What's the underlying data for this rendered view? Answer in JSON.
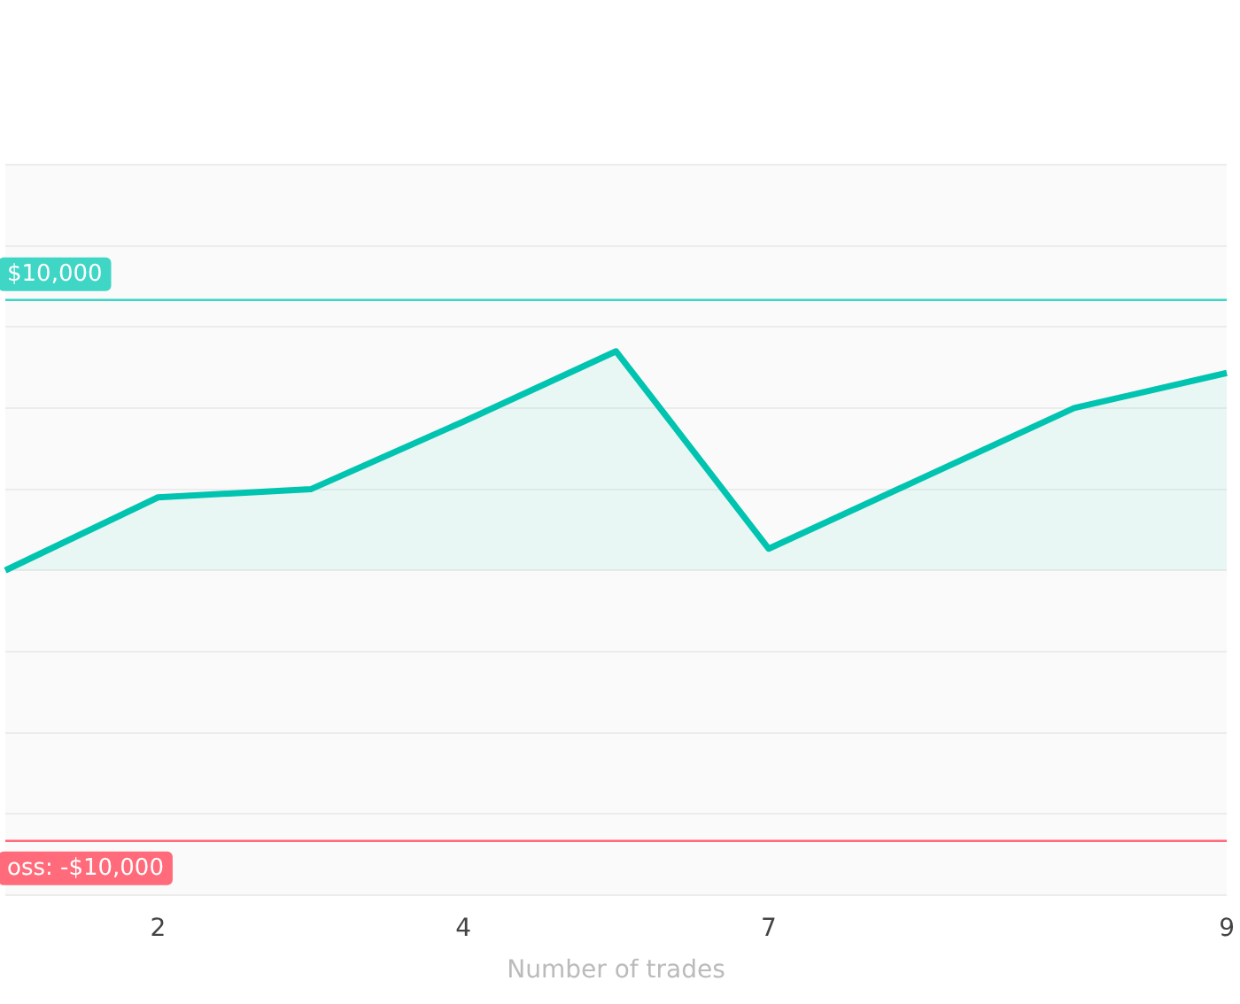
{
  "chart_data": {
    "type": "area",
    "xlabel": "Number of trades",
    "categories": [
      null,
      "2",
      null,
      "4",
      null,
      "7",
      null,
      null,
      "9"
    ],
    "series": [
      {
        "color": "#00c4b0",
        "values": [
          0,
          2700,
          3000,
          5500,
          8100,
          800,
          3400,
          6000,
          7300
        ]
      }
    ],
    "ylim": [
      -12000,
      15000
    ],
    "yticks": [
      {
        "value": -12000,
        "label": null
      },
      {
        "value": -9000,
        "label": null
      },
      {
        "value": -6000,
        "label": null
      },
      {
        "value": -3000,
        "label": null
      },
      {
        "value": 0,
        "label": null
      },
      {
        "value": 3000,
        "label": null
      },
      {
        "value": 6000,
        "label": null
      },
      {
        "value": 9000,
        "label": null
      },
      {
        "value": 12000,
        "label": null
      },
      {
        "value": 15000,
        "label": null
      }
    ],
    "tick_labels": "x",
    "grid": "y",
    "legend": false,
    "marker": "none",
    "line_style": "solid",
    "ref_lines": [
      {
        "axis": "y",
        "value": 10000,
        "label": "$10,000",
        "color": "#3fd6c6"
      },
      {
        "axis": "y",
        "value": -10000,
        "label": "oss: -$10,000",
        "color": "#ff6b7a"
      }
    ]
  }
}
